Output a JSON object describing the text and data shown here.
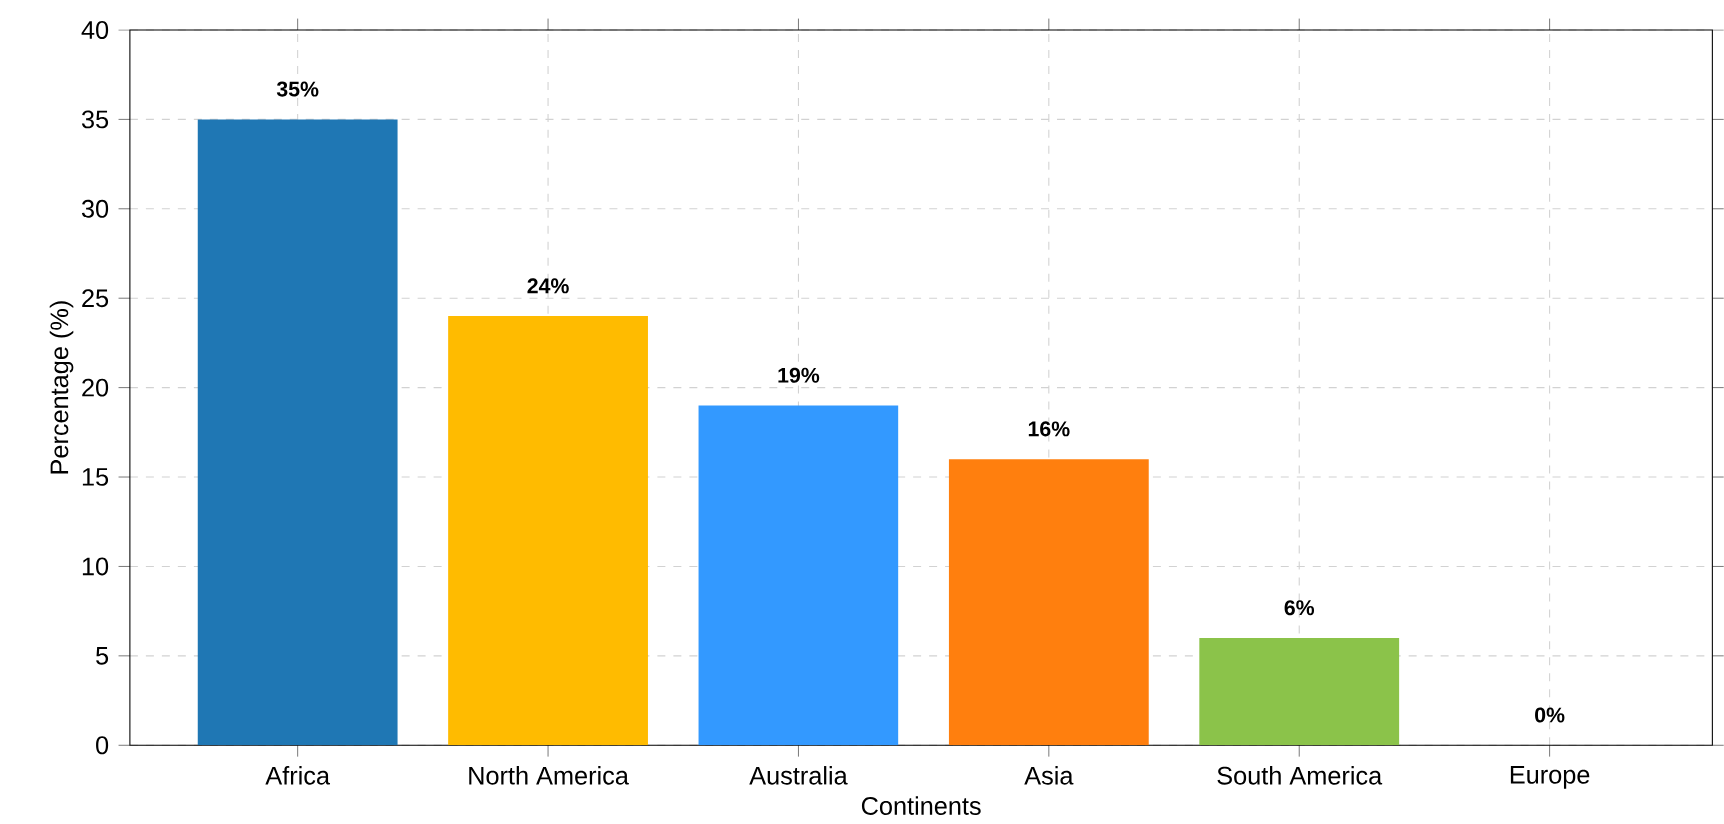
{
  "chart_data": {
    "type": "bar",
    "xlabel": "Continents",
    "ylabel": "Percentage (%)",
    "categories": [
      "Africa",
      "North America",
      "Australia",
      "Asia",
      "South America",
      "Europe"
    ],
    "values": [
      35,
      24,
      19,
      16,
      6,
      0
    ],
    "value_labels": [
      "35%",
      "24%",
      "19%",
      "16%",
      "6%",
      "0%"
    ],
    "colors": [
      "#1f77b4",
      "#ffbb00",
      "#3399ff",
      "#ff7f0e",
      "#8bc34a",
      "#9467bd"
    ],
    "ylim": [
      0,
      40
    ],
    "yticks": [
      0,
      5,
      10,
      15,
      20,
      25,
      30,
      35,
      40
    ],
    "grid": true
  }
}
